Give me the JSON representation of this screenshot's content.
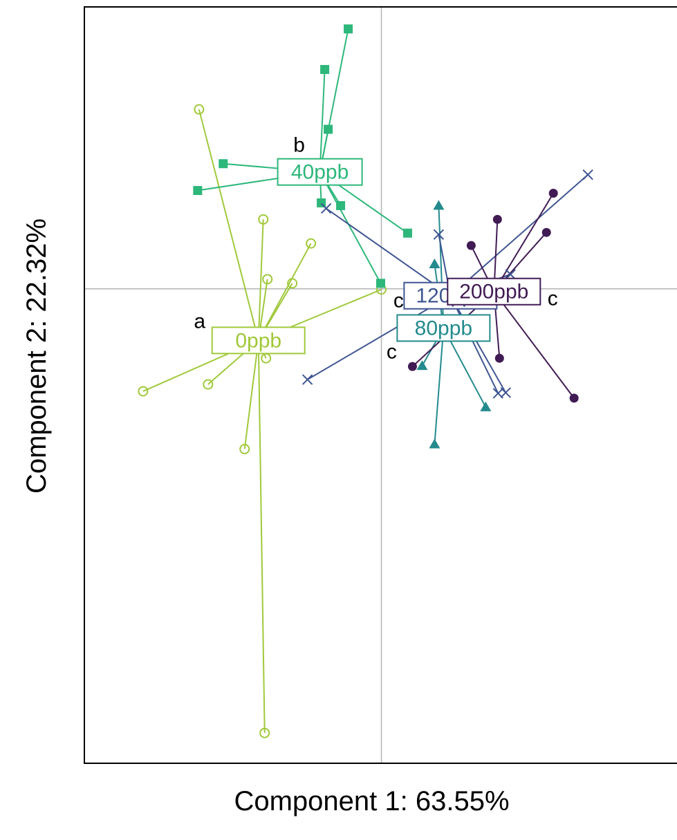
{
  "chart_data": {
    "type": "scatter",
    "xlabel": "Component 1: 63.55%",
    "ylabel": "Component  2: 22.32%",
    "xlim": [
      -4.3,
      4.3
    ],
    "ylim": [
      -6.9,
      4.1
    ],
    "reference_lines": {
      "x": 0,
      "y": 0
    },
    "grid": false,
    "legend": "none",
    "groups": [
      {
        "name": "0ppb",
        "letter": "a",
        "color": "#a0c93a",
        "marker": "open-circle",
        "centroid": [
          -1.78,
          -0.75
        ],
        "points": [
          [
            -2.64,
            2.61
          ],
          [
            -1.71,
            1.01
          ],
          [
            -1.02,
            0.66
          ],
          [
            -1.65,
            0.14
          ],
          [
            -1.29,
            0.08
          ],
          [
            0.0,
            -0.01
          ],
          [
            -3.45,
            -1.49
          ],
          [
            -2.51,
            -1.39
          ],
          [
            -1.67,
            -1.01
          ],
          [
            -1.98,
            -2.33
          ],
          [
            -1.69,
            -6.46
          ]
        ]
      },
      {
        "name": "40ppb",
        "letter": "b",
        "color": "#2db77a",
        "marker": "filled-square",
        "centroid": [
          -0.89,
          1.7
        ],
        "points": [
          [
            -0.48,
            3.78
          ],
          [
            -0.82,
            3.19
          ],
          [
            -0.77,
            2.32
          ],
          [
            -2.29,
            1.82
          ],
          [
            -2.66,
            1.43
          ],
          [
            -0.87,
            1.25
          ],
          [
            -0.59,
            1.21
          ],
          [
            0.38,
            0.81
          ],
          [
            -0.01,
            0.08
          ]
        ]
      },
      {
        "name": "80ppb",
        "letter": "c",
        "color": "#238a8d",
        "marker": "filled-triangle",
        "centroid": [
          0.9,
          -0.57
        ],
        "points": [
          [
            0.83,
            1.21
          ],
          [
            0.77,
            0.36
          ],
          [
            0.59,
            -1.12
          ],
          [
            1.51,
            -1.72
          ],
          [
            0.77,
            -2.26
          ]
        ]
      },
      {
        "name": "120ppb",
        "letter": "c",
        "color": "#3e5592",
        "marker": "cross",
        "centroid": [
          1.0,
          -0.1
        ],
        "points": [
          [
            2.99,
            1.66
          ],
          [
            -0.8,
            1.17
          ],
          [
            0.83,
            0.79
          ],
          [
            1.87,
            0.21
          ],
          [
            1.69,
            -1.52
          ],
          [
            1.8,
            -1.51
          ],
          [
            -1.07,
            -1.32
          ]
        ]
      },
      {
        "name": "200ppb",
        "letter": "c",
        "color": "#411b54",
        "marker": "filled-circle",
        "centroid": [
          1.63,
          -0.04
        ],
        "points": [
          [
            2.49,
            1.39
          ],
          [
            1.68,
            1.01
          ],
          [
            2.39,
            0.82
          ],
          [
            1.3,
            0.63
          ],
          [
            1.71,
            -1.01
          ],
          [
            0.45,
            -1.13
          ],
          [
            2.79,
            -1.59
          ]
        ]
      }
    ]
  }
}
